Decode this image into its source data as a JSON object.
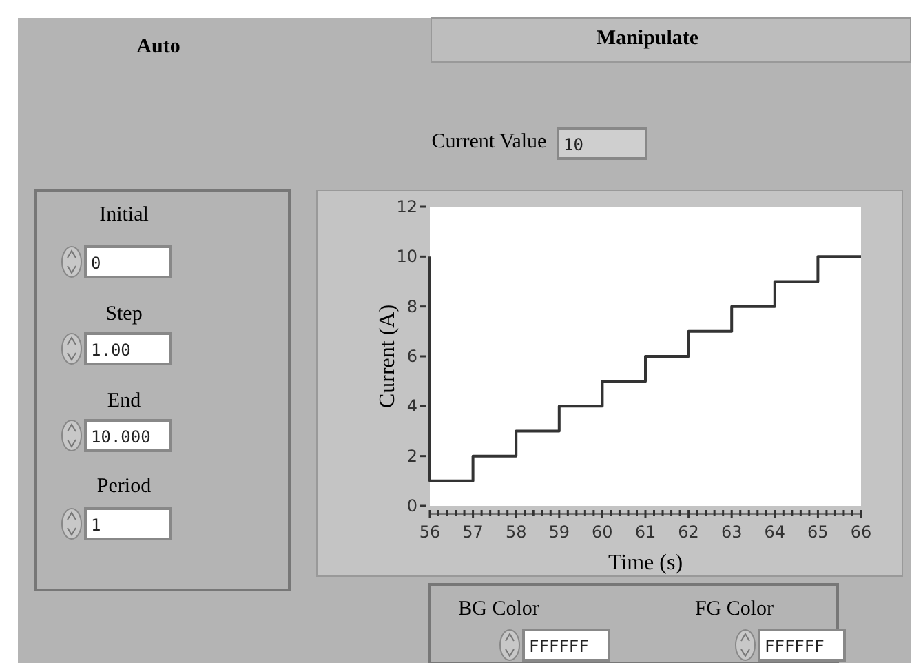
{
  "chart_data": {
    "type": "step",
    "xlabel": "Time (s)",
    "ylabel": "Current (A)",
    "x": [
      56,
      56,
      57,
      58,
      59,
      60,
      61,
      62,
      63,
      64,
      65,
      66
    ],
    "series": [
      {
        "color": "#333333",
        "values": [
          10,
          1,
          2,
          3,
          4,
          5,
          6,
          7,
          8,
          9,
          10,
          10
        ]
      }
    ],
    "xlim": [
      56,
      66
    ],
    "ylim": [
      0,
      12
    ],
    "xticks": [
      56,
      {
        "value": 56.2,
        "label": null
      },
      {
        "value": 56.4,
        "label": null
      },
      {
        "value": 56.6,
        "label": null
      },
      {
        "value": 56.8,
        "label": null
      },
      57,
      {
        "value": 57.2,
        "label": null
      },
      {
        "value": 57.4,
        "label": null
      },
      {
        "value": 57.6,
        "label": null
      },
      {
        "value": 57.8,
        "label": null
      },
      58,
      {
        "value": 58.2,
        "label": null
      },
      {
        "value": 58.4,
        "label": null
      },
      {
        "value": 58.6,
        "label": null
      },
      {
        "value": 58.8,
        "label": null
      },
      59,
      {
        "value": 59.2,
        "label": null
      },
      {
        "value": 59.4,
        "label": null
      },
      {
        "value": 59.6,
        "label": null
      },
      {
        "value": 59.8,
        "label": null
      },
      60,
      {
        "value": 60.2,
        "label": null
      },
      {
        "value": 60.4,
        "label": null
      },
      {
        "value": 60.6,
        "label": null
      },
      {
        "value": 60.8,
        "label": null
      },
      61,
      {
        "value": 61.2,
        "label": null
      },
      {
        "value": 61.4,
        "label": null
      },
      {
        "value": 61.6,
        "label": null
      },
      {
        "value": 61.8,
        "label": null
      },
      62,
      {
        "value": 62.2,
        "label": null
      },
      {
        "value": 62.4,
        "label": null
      },
      {
        "value": 62.6,
        "label": null
      },
      {
        "value": 62.8,
        "label": null
      },
      63,
      {
        "value": 63.2,
        "label": null
      },
      {
        "value": 63.4,
        "label": null
      },
      {
        "value": 63.6,
        "label": null
      },
      {
        "value": 63.8,
        "label": null
      },
      64,
      {
        "value": 64.2,
        "label": null
      },
      {
        "value": 64.4,
        "label": null
      },
      {
        "value": 64.6,
        "label": null
      },
      {
        "value": 64.8,
        "label": null
      },
      65,
      {
        "value": 65.2,
        "label": null
      },
      {
        "value": 65.4,
        "label": null
      },
      {
        "value": 65.6,
        "label": null
      },
      {
        "value": 65.8,
        "label": null
      },
      66
    ],
    "yticks": [
      0,
      2,
      4,
      6,
      8,
      10,
      12
    ],
    "grid": false,
    "annotations": [
      "Auto",
      "Manipulate",
      "Current Value",
      "10",
      "Initial",
      "0",
      "Step",
      "1.00",
      "End",
      "10.000",
      "Period",
      "1",
      "BG Color",
      "FFFFFF",
      "FG Color",
      "FFFFFF"
    ]
  }
}
